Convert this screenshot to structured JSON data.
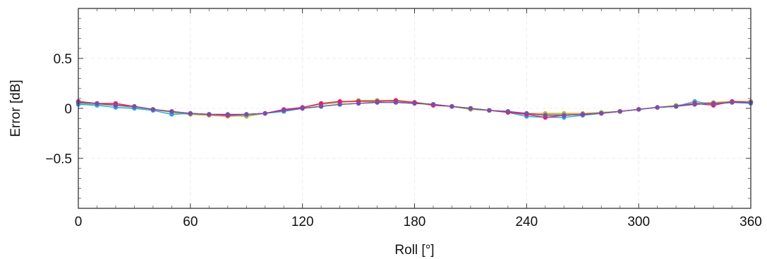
{
  "chart_data": {
    "type": "line",
    "xlabel": "Roll [°]",
    "ylabel": "Error [dB]",
    "xlim": [
      0,
      360
    ],
    "ylim": [
      -1,
      1
    ],
    "x_ticks": [
      0,
      60,
      120,
      180,
      240,
      300,
      360
    ],
    "x_tick_labels": [
      "0",
      "60",
      "120",
      "180",
      "240",
      "300",
      "360"
    ],
    "y_ticks": [
      0.5,
      0,
      -0.5
    ],
    "y_tick_labels": [
      "0.5",
      "0",
      "−0.5"
    ],
    "grid": true,
    "x": [
      0,
      10,
      20,
      30,
      40,
      50,
      60,
      70,
      80,
      90,
      100,
      110,
      120,
      130,
      140,
      150,
      160,
      170,
      180,
      190,
      200,
      210,
      220,
      230,
      240,
      250,
      260,
      270,
      280,
      290,
      300,
      310,
      320,
      330,
      340,
      350,
      360
    ],
    "series": [
      {
        "color": "#e6a23c",
        "values": [
          0.06,
          0.05,
          0.04,
          0.02,
          -0.01,
          -0.04,
          -0.06,
          -0.07,
          -0.08,
          -0.07,
          -0.05,
          -0.02,
          0.01,
          0.04,
          0.06,
          0.07,
          0.08,
          0.08,
          0.06,
          0.04,
          0.02,
          -0.01,
          -0.02,
          -0.03,
          -0.05,
          -0.05,
          -0.05,
          -0.05,
          -0.04,
          -0.03,
          -0.01,
          0.01,
          0.03,
          0.05,
          0.06,
          0.07,
          0.07
        ]
      },
      {
        "color": "#8bc34a",
        "values": [
          0.05,
          0.04,
          0.03,
          0.01,
          -0.01,
          -0.04,
          -0.06,
          -0.06,
          -0.07,
          -0.08,
          -0.05,
          -0.02,
          0.01,
          0.04,
          0.06,
          0.08,
          0.08,
          0.07,
          0.06,
          0.04,
          0.02,
          -0.01,
          -0.02,
          -0.03,
          -0.06,
          -0.06,
          -0.06,
          -0.06,
          -0.04,
          -0.03,
          -0.01,
          0.01,
          0.03,
          0.04,
          0.05,
          0.06,
          0.06
        ]
      },
      {
        "color": "#29a3e0",
        "values": [
          0.04,
          0.03,
          0.01,
          0.0,
          -0.02,
          -0.06,
          -0.05,
          -0.06,
          -0.07,
          -0.06,
          -0.05,
          -0.03,
          0.0,
          0.02,
          0.04,
          0.05,
          0.06,
          0.06,
          0.05,
          0.04,
          0.02,
          0.0,
          -0.02,
          -0.04,
          -0.08,
          -0.09,
          -0.09,
          -0.07,
          -0.05,
          -0.03,
          -0.01,
          0.01,
          0.02,
          0.07,
          0.04,
          0.06,
          0.05
        ]
      },
      {
        "color": "#e91e63",
        "values": [
          0.07,
          0.05,
          0.05,
          0.02,
          -0.01,
          -0.03,
          -0.05,
          -0.06,
          -0.07,
          -0.06,
          -0.05,
          -0.01,
          0.01,
          0.05,
          0.07,
          0.07,
          0.07,
          0.08,
          0.06,
          0.03,
          0.02,
          0.0,
          -0.02,
          -0.04,
          -0.06,
          -0.09,
          -0.07,
          -0.06,
          -0.05,
          -0.03,
          -0.01,
          0.01,
          0.02,
          0.05,
          0.03,
          0.07,
          0.06
        ]
      },
      {
        "color": "#7b4fa8",
        "values": [
          0.06,
          0.05,
          0.03,
          0.02,
          -0.01,
          -0.03,
          -0.05,
          -0.06,
          -0.06,
          -0.06,
          -0.05,
          -0.02,
          0.0,
          0.02,
          0.04,
          0.05,
          0.06,
          0.06,
          0.05,
          0.04,
          0.02,
          0.0,
          -0.02,
          -0.03,
          -0.05,
          -0.07,
          -0.07,
          -0.06,
          -0.05,
          -0.03,
          -0.01,
          0.01,
          0.02,
          0.04,
          0.05,
          0.06,
          0.06
        ]
      }
    ]
  }
}
